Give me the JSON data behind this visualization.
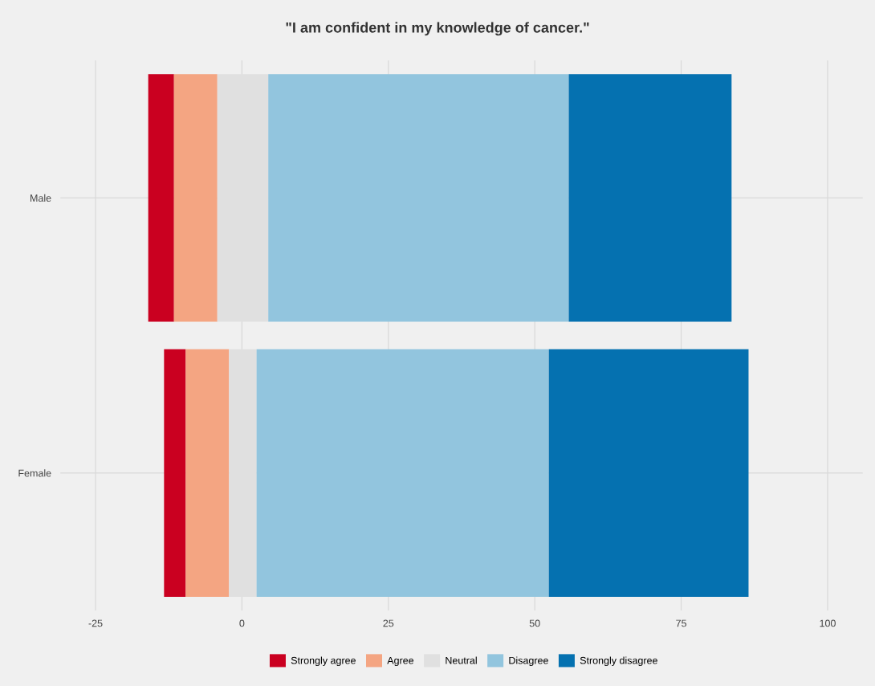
{
  "chart_data": {
    "type": "bar",
    "orientation": "horizontal",
    "title": "\"I am confident in my knowledge of cancer.\"",
    "categories": [
      "Male",
      "Female"
    ],
    "series": [
      {
        "name": "Strongly agree",
        "color": "#ca0020",
        "base": [
          -16.0,
          -13.3
        ],
        "values": [
          4.4,
          3.7
        ]
      },
      {
        "name": "Agree",
        "color": "#f4a582",
        "base": [
          -11.6,
          -9.6
        ],
        "values": [
          7.4,
          7.4
        ]
      },
      {
        "name": "Neutral",
        "color": "#e0e0e0",
        "base": [
          -4.2,
          -2.2
        ],
        "values": [
          8.7,
          4.7
        ]
      },
      {
        "name": "Disagree",
        "color": "#92c5de",
        "base": [
          4.5,
          2.5
        ],
        "values": [
          51.3,
          49.9
        ]
      },
      {
        "name": "Strongly disagree",
        "color": "#0571b0",
        "base": [
          55.8,
          52.4
        ],
        "values": [
          27.8,
          34.1
        ]
      }
    ],
    "xlim": [
      -31,
      106
    ],
    "xticks": [
      -25,
      0,
      25,
      50,
      75,
      100
    ],
    "grid": true,
    "legend": "bottom"
  }
}
